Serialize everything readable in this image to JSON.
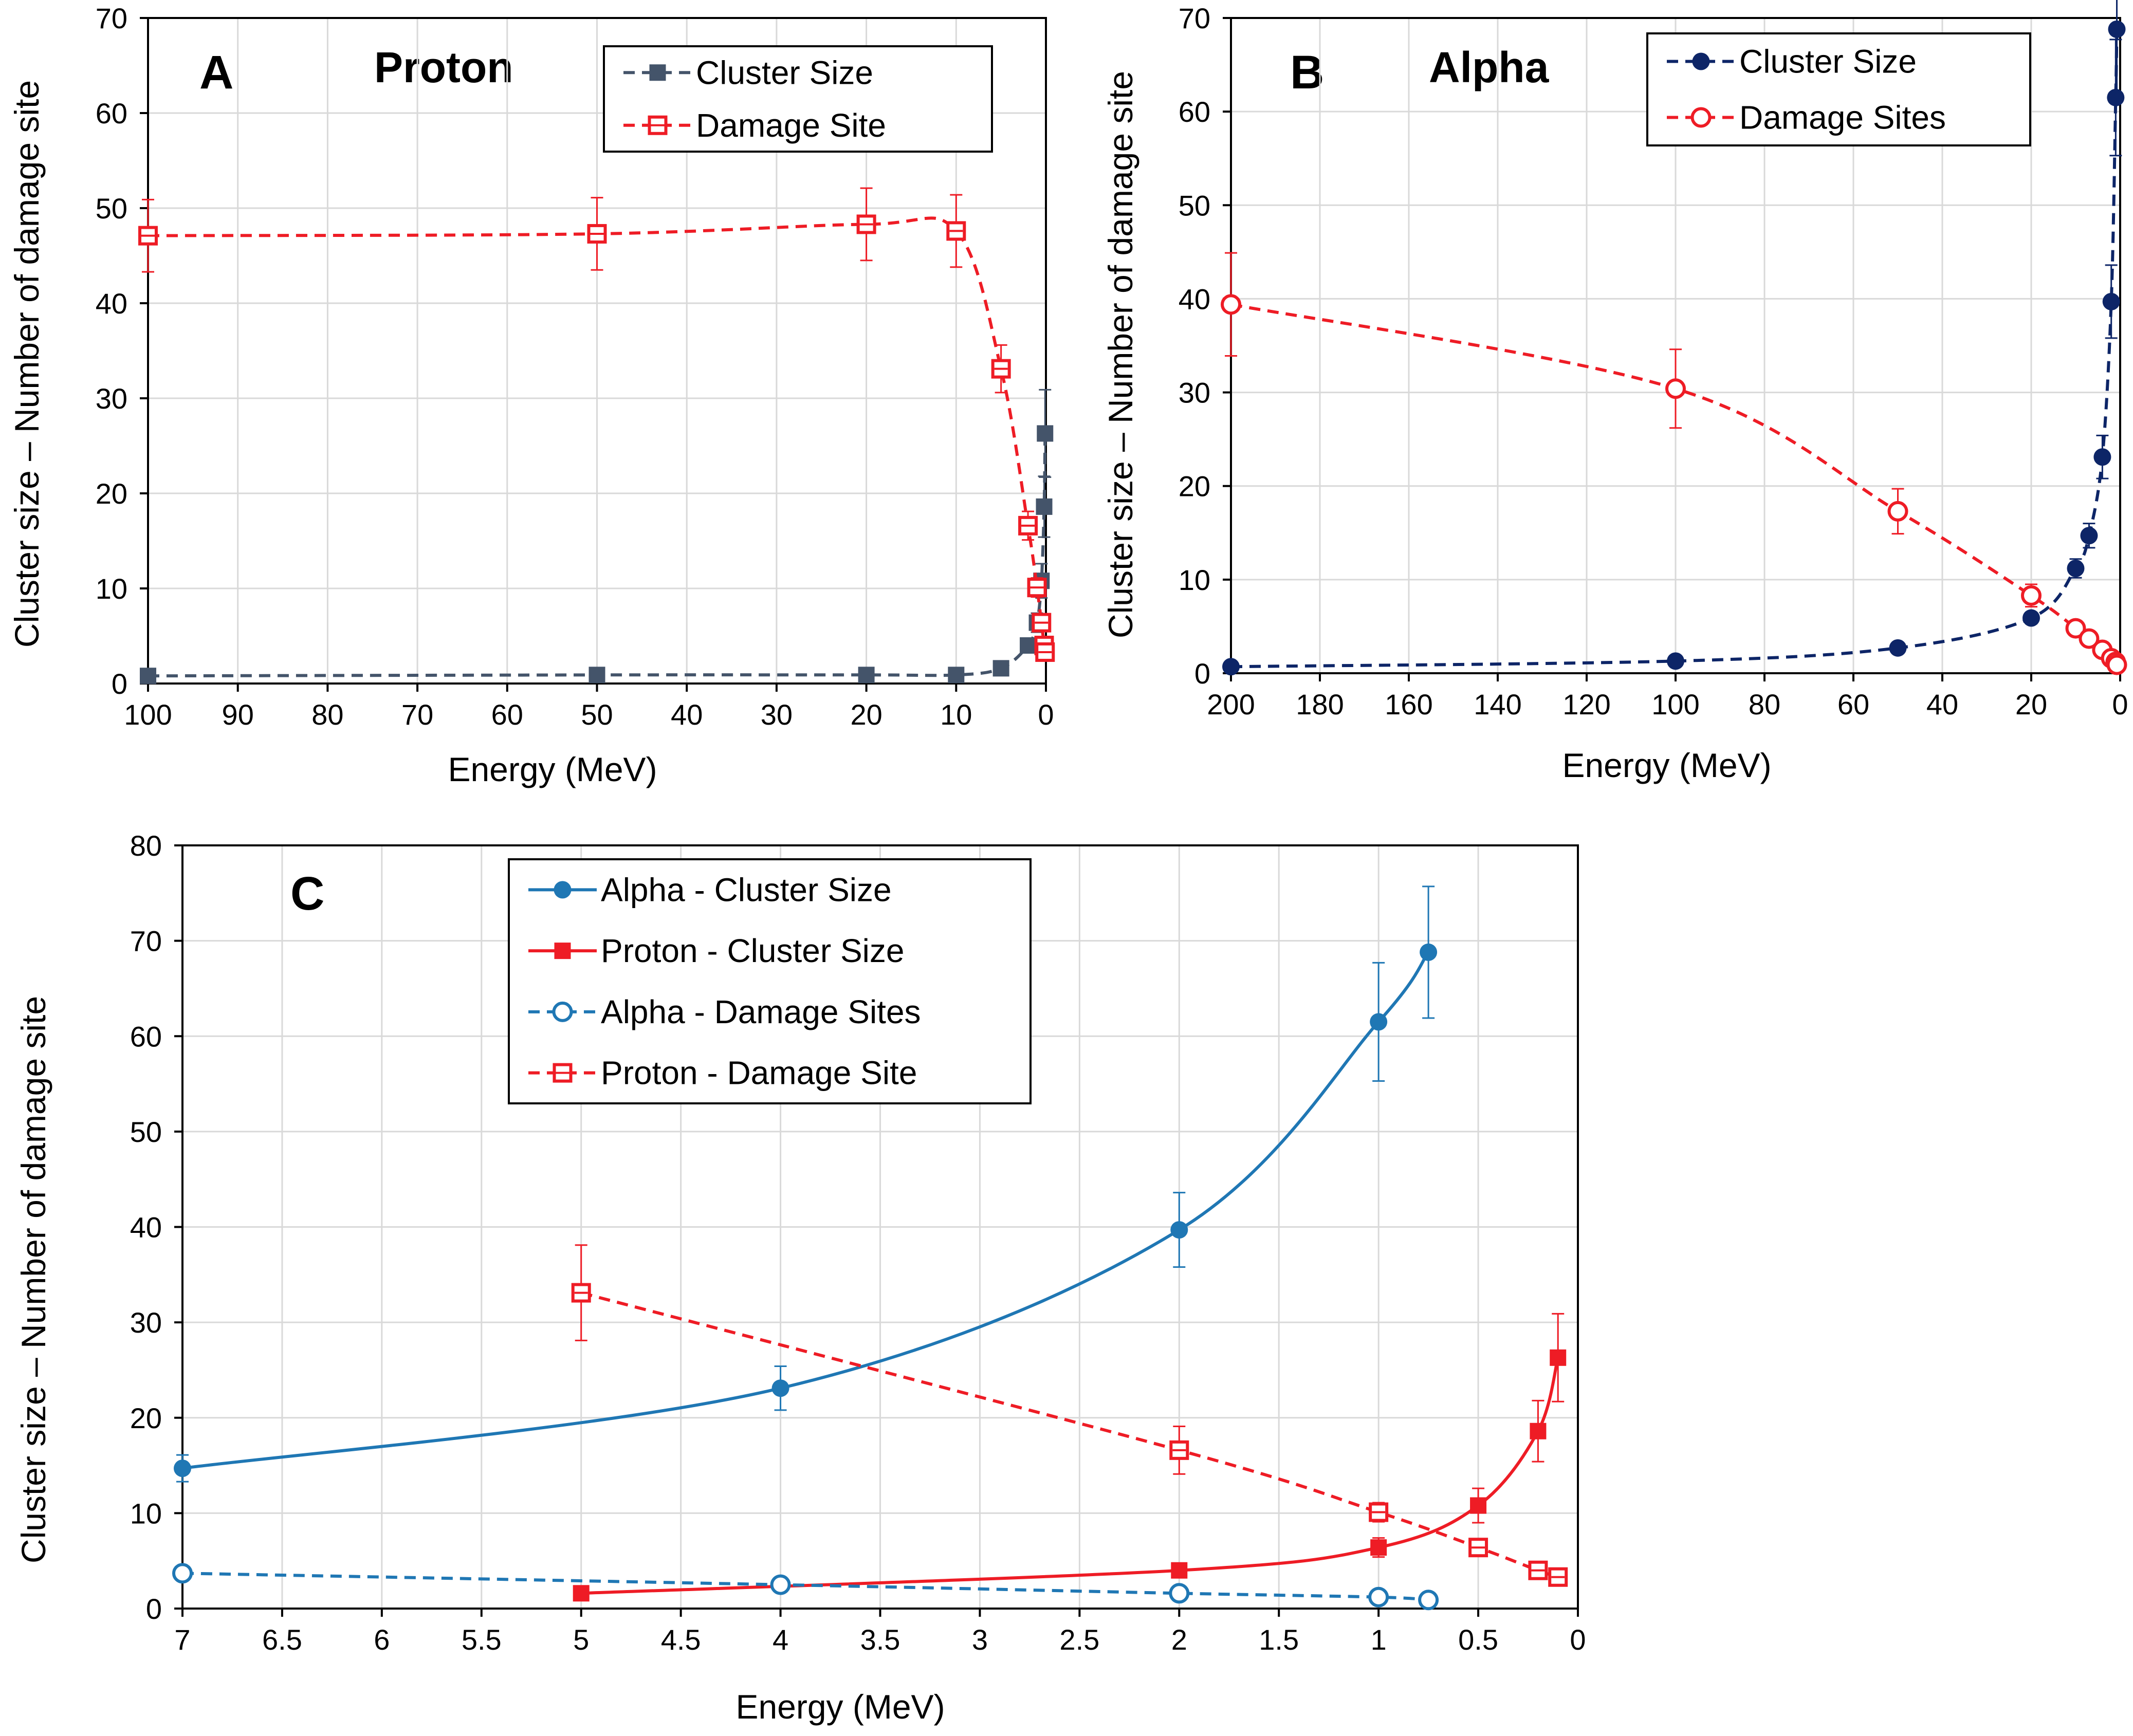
{
  "colors": {
    "proton_red": "#ee1c25",
    "proton_cluster_slate": "#44546a",
    "alpha_navy": "#0d2567",
    "alpha_blue": "#1f77b4",
    "grid": "#d9d9d9"
  },
  "chart_data": [
    {
      "id": "A",
      "type": "scatter",
      "panel_letter": "A",
      "title": "Proton",
      "xlabel": "Energy (MeV)",
      "ylabel": "Cluster size – Number of damage site",
      "xlim": [
        100,
        0
      ],
      "ylim": [
        0,
        70
      ],
      "x_ticks": [
        100,
        90,
        80,
        70,
        60,
        50,
        40,
        30,
        20,
        10,
        0
      ],
      "y_ticks": [
        0,
        10,
        20,
        30,
        40,
        50,
        60,
        70
      ],
      "legend_position": "top-right",
      "series": [
        {
          "name": "Cluster Size",
          "color": "#44546a",
          "marker": "square-filled",
          "line": "dashed",
          "x": [
            100,
            50,
            20,
            10,
            5,
            2,
            1,
            0.5,
            0.2,
            0.1
          ],
          "y": [
            0.8,
            0.9,
            0.9,
            0.9,
            1.6,
            4.0,
            6.4,
            10.8,
            18.6,
            26.3
          ],
          "err": [
            0.2,
            0.2,
            0.2,
            0.2,
            0.3,
            0.5,
            1.0,
            1.8,
            3.2,
            4.6
          ]
        },
        {
          "name": "Damage Site",
          "color": "#ee1c25",
          "marker": "square-open",
          "line": "dashed",
          "x": [
            100,
            50,
            20,
            10,
            5,
            2,
            1,
            0.5,
            0.2,
            0.1
          ],
          "y": [
            47.1,
            47.3,
            48.3,
            47.6,
            33.1,
            16.6,
            10.1,
            6.4,
            4.0,
            3.3
          ],
          "err": [
            3.8,
            3.8,
            3.8,
            3.8,
            2.5,
            1.5,
            1.0,
            0.8,
            0.7,
            0.6
          ]
        }
      ]
    },
    {
      "id": "B",
      "type": "scatter",
      "panel_letter": "B",
      "title": "Alpha",
      "xlabel": "Energy (MeV)",
      "ylabel": "Cluster size – Number of damage site",
      "xlim": [
        200,
        0
      ],
      "ylim": [
        0,
        70
      ],
      "x_ticks": [
        200,
        180,
        160,
        140,
        120,
        100,
        80,
        60,
        40,
        20,
        0
      ],
      "y_ticks": [
        0,
        10,
        20,
        30,
        40,
        50,
        60,
        70
      ],
      "legend_position": "top-right",
      "series": [
        {
          "name": "Cluster Size",
          "color": "#0d2567",
          "marker": "circle-filled",
          "line": "dashed",
          "x": [
            200,
            100,
            50,
            20,
            10,
            7,
            4,
            2,
            1,
            0.75
          ],
          "y": [
            0.7,
            1.3,
            2.7,
            5.9,
            11.2,
            14.7,
            23.1,
            39.7,
            61.5,
            68.8
          ],
          "err": [
            0.1,
            0.2,
            0.3,
            0.6,
            1.0,
            1.3,
            2.3,
            3.9,
            6.2,
            6.9
          ]
        },
        {
          "name": "Damage Sites",
          "color": "#ee1c25",
          "marker": "circle-open",
          "line": "dashed",
          "x": [
            200,
            100,
            50,
            20,
            10,
            7,
            4,
            2,
            1,
            0.75
          ],
          "y": [
            39.4,
            30.4,
            17.3,
            8.3,
            4.8,
            3.7,
            2.5,
            1.6,
            1.2,
            0.9
          ],
          "err": [
            5.5,
            4.2,
            2.4,
            1.2,
            0.7,
            0.5,
            0.4,
            0.3,
            0.2,
            0.2
          ]
        }
      ]
    },
    {
      "id": "C",
      "type": "scatter",
      "panel_letter": "C",
      "title": "",
      "xlabel": "Energy (MeV)",
      "ylabel": "Cluster size – Number of damage site",
      "xlim": [
        7,
        0
      ],
      "ylim": [
        0,
        80
      ],
      "x_ticks": [
        7,
        6.5,
        6,
        5.5,
        5,
        4.5,
        4,
        3.5,
        3,
        2.5,
        2,
        1.5,
        1,
        0.5,
        0
      ],
      "y_ticks": [
        0,
        10,
        20,
        30,
        40,
        50,
        60,
        70,
        80
      ],
      "legend_position": "top-center",
      "series": [
        {
          "name": "Alpha - Cluster Size",
          "color": "#1f77b4",
          "marker": "circle-filled",
          "line": "solid",
          "x": [
            7,
            4,
            2,
            1,
            0.75
          ],
          "y": [
            14.7,
            23.1,
            39.7,
            61.5,
            68.8
          ],
          "err": [
            1.4,
            2.3,
            3.9,
            6.2,
            6.9
          ]
        },
        {
          "name": "Proton - Cluster Size",
          "color": "#ee1c25",
          "marker": "square-filled",
          "line": "solid",
          "x": [
            5,
            2,
            1,
            0.5,
            0.2,
            0.1
          ],
          "y": [
            1.6,
            4.0,
            6.4,
            10.8,
            18.6,
            26.3
          ],
          "err": [
            0.3,
            0.5,
            1.0,
            1.8,
            3.2,
            4.6
          ]
        },
        {
          "name": "Alpha - Damage Sites",
          "color": "#1f77b4",
          "marker": "circle-open",
          "line": "dashed",
          "x": [
            7,
            4,
            2,
            1,
            0.75
          ],
          "y": [
            3.7,
            2.5,
            1.6,
            1.2,
            0.9
          ],
          "err": [
            0.3,
            0.3,
            0.2,
            0.2,
            0.2
          ]
        },
        {
          "name": "Proton - Damage Site",
          "color": "#ee1c25",
          "marker": "square-open",
          "line": "dashed",
          "x": [
            5,
            2,
            1,
            0.5,
            0.2,
            0.1
          ],
          "y": [
            33.1,
            16.6,
            10.1,
            6.4,
            4.0,
            3.3
          ],
          "err": [
            5.0,
            2.5,
            1.0,
            0.8,
            0.7,
            0.6
          ]
        }
      ]
    }
  ]
}
